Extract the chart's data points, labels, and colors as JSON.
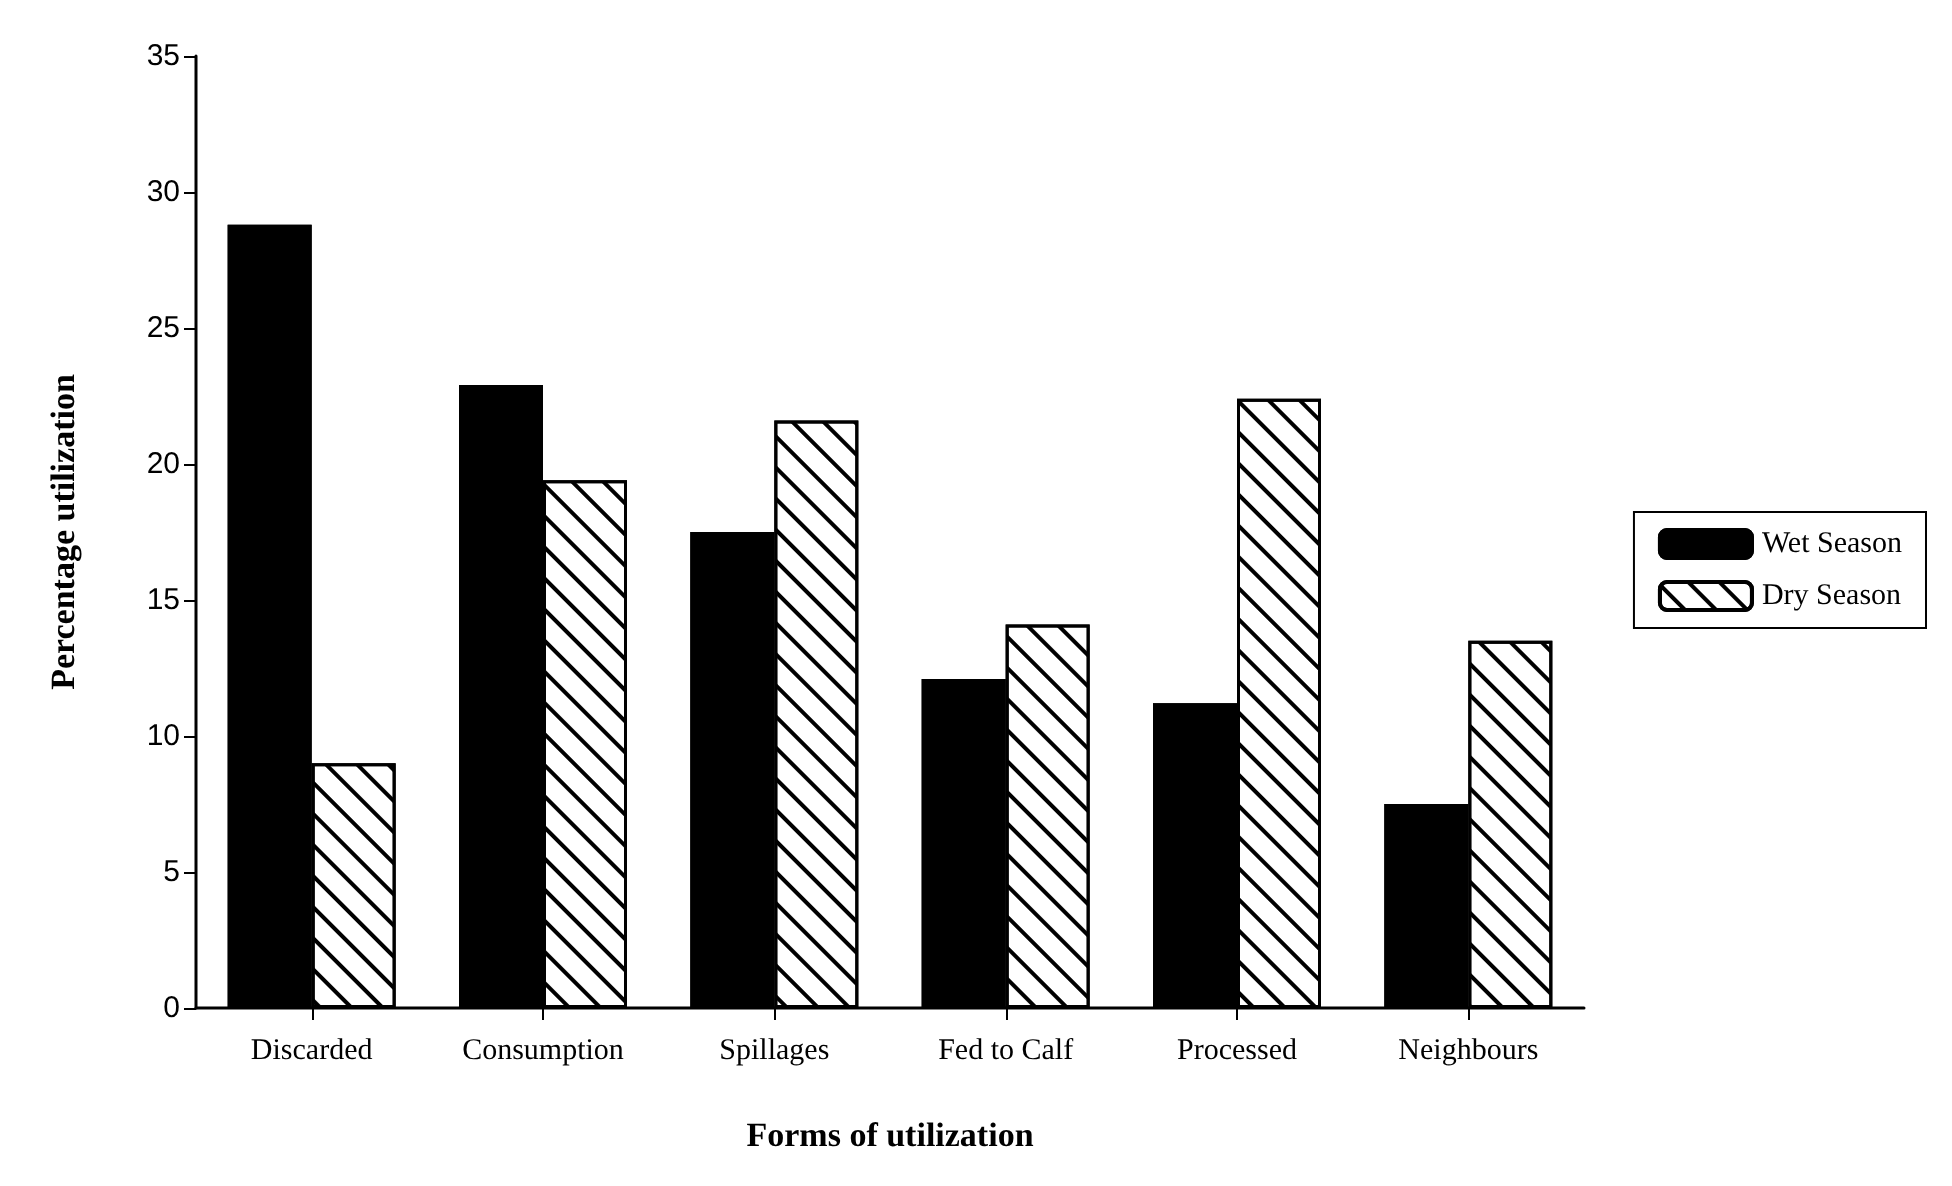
{
  "chart_data": {
    "type": "bar",
    "xlabel": "Forms of utilization",
    "ylabel": "Percentage utilization",
    "categories": [
      "Discarded",
      "Consumption",
      "Spillages",
      "Fed to Calf",
      "Processed",
      "Neighbours"
    ],
    "series": [
      {
        "name": "Wet Season",
        "color": "#000000",
        "values": [
          28.8,
          22.9,
          17.5,
          12.1,
          11.2,
          7.5
        ]
      },
      {
        "name": "Dry Season",
        "color": "#ffffff",
        "values": [
          9.0,
          19.4,
          21.6,
          14.1,
          22.4,
          13.5
        ]
      }
    ],
    "ylim": [
      0,
      35
    ],
    "yticks": [
      0,
      5,
      10,
      15,
      20,
      25,
      30,
      35
    ],
    "grid": false,
    "legend": "right"
  }
}
